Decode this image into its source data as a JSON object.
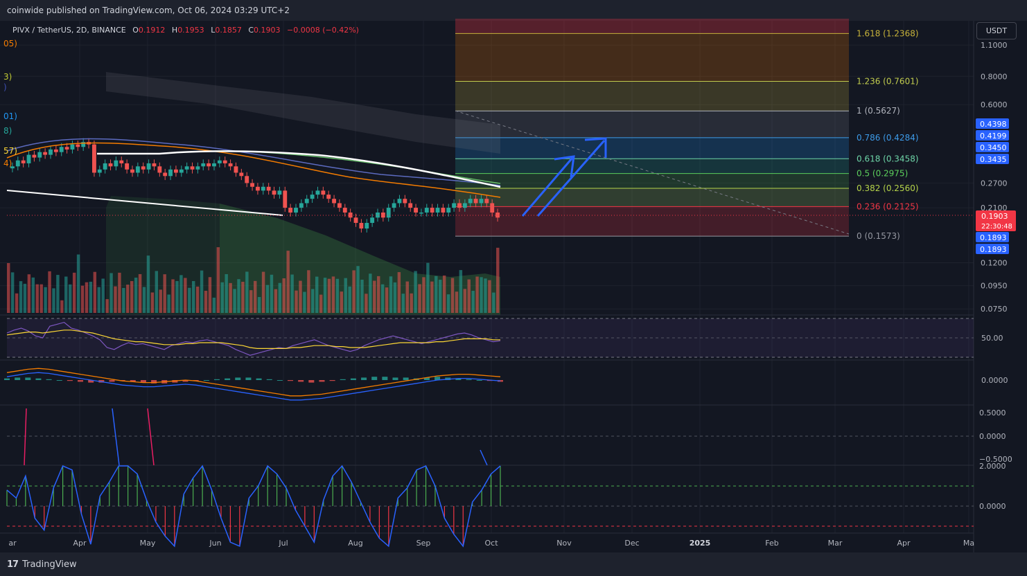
{
  "header": {
    "publish_text": "coinwide published on TradingView.com, Oct 06, 2024 03:29 UTC+2",
    "symbol": "PIVX / TetherUS, 2D, BINANCE",
    "open_label": "O",
    "open": "0.1912",
    "high_label": "H",
    "high": "0.1953",
    "low_label": "L",
    "low": "0.1857",
    "close_label": "C",
    "close": "0.1903",
    "change": "−0.0008 (−0.42%)"
  },
  "left_edge_labels": [
    "05)",
    "3)",
    ")",
    "01)",
    "8)",
    "57)",
    "4)"
  ],
  "currency_button": "USDT",
  "footer": {
    "brand": "TradingView"
  },
  "colors": {
    "background": "#131722",
    "up": "#26a69a",
    "down": "#ef5350",
    "fib_1618": "#c7b33a",
    "fib_1236": "#c1cc4e",
    "fib_1": "#b2b5be",
    "fib_0786": "#3d9be9",
    "fib_0618": "#6ed5a8",
    "fib_05": "#5ccf5c",
    "fib_0382": "#b6d44a",
    "fib_0236": "#f23645",
    "fib_0": "#9598a1",
    "arrow": "#2962ff",
    "label_blue": "#2962ff",
    "label_red": "#f23645"
  },
  "chart_data": [
    {
      "type": "candlestick",
      "title": "PIVX / TetherUS, 2D, BINANCE",
      "x_ticks": [
        "Apr",
        "May",
        "Jun",
        "Jul",
        "Aug",
        "Sep",
        "Oct",
        "Nov",
        "Dec",
        "2025",
        "Feb",
        "Mar",
        "Apr",
        "Ma"
      ],
      "y_scale": "log",
      "y_ticks": [
        "1.1000",
        "0.8000",
        "0.6000",
        "0.2700",
        "0.2100",
        "0.1200",
        "0.0950",
        "0.0750"
      ],
      "last_price": "0.1903",
      "countdown": "22:30:48",
      "price_labels": [
        "0.4398",
        "0.4199",
        "0.3450",
        "0.3435",
        "0.1893",
        "0.1893"
      ],
      "close_series": [
        0.32,
        0.34,
        0.33,
        0.36,
        0.35,
        0.37,
        0.36,
        0.38,
        0.37,
        0.39,
        0.38,
        0.4,
        0.39,
        0.41,
        0.4,
        0.3,
        0.31,
        0.33,
        0.32,
        0.34,
        0.33,
        0.31,
        0.3,
        0.32,
        0.31,
        0.33,
        0.32,
        0.3,
        0.29,
        0.31,
        0.3,
        0.31,
        0.32,
        0.31,
        0.32,
        0.33,
        0.32,
        0.33,
        0.34,
        0.33,
        0.32,
        0.3,
        0.29,
        0.27,
        0.26,
        0.25,
        0.26,
        0.25,
        0.24,
        0.25,
        0.21,
        0.2,
        0.21,
        0.22,
        0.23,
        0.24,
        0.25,
        0.24,
        0.23,
        0.22,
        0.21,
        0.2,
        0.19,
        0.18,
        0.17,
        0.18,
        0.19,
        0.2,
        0.19,
        0.21,
        0.22,
        0.23,
        0.22,
        0.21,
        0.2,
        0.2,
        0.21,
        0.2,
        0.21,
        0.2,
        0.21,
        0.22,
        0.21,
        0.22,
        0.23,
        0.22,
        0.23,
        0.22,
        0.2,
        0.19
      ],
      "fibonacci": [
        {
          "level": "1.618",
          "price": "1.2368"
        },
        {
          "level": "1.236",
          "price": "0.7601"
        },
        {
          "level": "1",
          "price": "0.5627"
        },
        {
          "level": "0.786",
          "price": "0.4284"
        },
        {
          "level": "0.618",
          "price": "0.3458"
        },
        {
          "level": "0.5",
          "price": "0.2975"
        },
        {
          "level": "0.382",
          "price": "0.2560"
        },
        {
          "level": "0.236",
          "price": "0.2125"
        },
        {
          "level": "0",
          "price": "0.1573"
        }
      ]
    },
    {
      "type": "line",
      "indicator": "rsi",
      "y_ticks": [
        "50.00"
      ],
      "rsi": [
        55,
        58,
        60,
        57,
        52,
        50,
        62,
        64,
        66,
        60,
        58,
        55,
        52,
        48,
        40,
        38,
        42,
        45,
        43,
        44,
        42,
        40,
        38,
        42,
        44,
        46,
        45,
        47,
        48,
        46,
        44,
        42,
        38,
        35,
        32,
        34,
        36,
        38,
        40,
        39,
        42,
        44,
        46,
        48,
        45,
        42,
        40,
        38,
        36,
        38,
        42,
        45,
        48,
        50,
        52,
        50,
        48,
        46,
        44,
        46,
        48,
        50,
        52,
        54,
        55,
        53,
        50,
        48,
        46,
        47
      ],
      "signal": [
        53,
        54,
        55,
        56,
        56,
        55,
        56,
        57,
        58,
        58,
        57,
        56,
        55,
        53,
        51,
        49,
        48,
        47,
        46,
        46,
        45,
        44,
        43,
        43,
        43,
        44,
        44,
        45,
        45,
        45,
        45,
        44,
        43,
        42,
        40,
        39,
        39,
        39,
        39,
        39,
        40,
        40,
        41,
        42,
        42,
        42,
        41,
        41,
        40,
        40,
        40,
        41,
        42,
        43,
        44,
        45,
        45,
        45,
        45,
        45,
        46,
        46,
        47,
        48,
        49,
        49,
        49,
        49,
        48,
        48
      ]
    },
    {
      "type": "bar",
      "indicator": "macd",
      "y_ticks": [
        "0.0000"
      ],
      "macd": [
        0.004,
        0.006,
        0.008,
        0.009,
        0.008,
        0.006,
        0.004,
        0.002,
        0.0,
        -0.002,
        -0.004,
        -0.006,
        -0.007,
        -0.008,
        -0.008,
        -0.007,
        -0.006,
        -0.005,
        -0.006,
        -0.008,
        -0.01,
        -0.012,
        -0.014,
        -0.016,
        -0.018,
        -0.02,
        -0.022,
        -0.024,
        -0.024,
        -0.023,
        -0.022,
        -0.02,
        -0.018,
        -0.016,
        -0.014,
        -0.012,
        -0.01,
        -0.008,
        -0.006,
        -0.004,
        -0.002,
        0.0,
        0.001,
        0.002,
        0.002,
        0.001,
        0.0,
        -0.001
      ],
      "histogram": [
        0.002,
        0.003,
        0.003,
        0.002,
        0.001,
        0.0,
        -0.001,
        -0.002,
        -0.003,
        -0.003,
        -0.002,
        -0.001,
        -0.002,
        -0.003,
        -0.004,
        -0.004,
        -0.003,
        -0.002,
        -0.001,
        0.0,
        0.001,
        0.002,
        0.003,
        0.003,
        0.002,
        0.001,
        0.0,
        -0.001,
        -0.002,
        -0.003,
        -0.002,
        -0.001,
        0.001,
        0.002,
        0.003,
        0.004,
        0.004,
        0.003,
        0.003,
        0.002,
        0.003,
        0.004,
        0.003,
        0.002,
        0.001,
        0.0,
        -0.001,
        -0.002
      ]
    },
    {
      "type": "line",
      "indicator": "oscillator",
      "y_ticks": [
        "0.5000",
        "0.0000",
        "−0.5000"
      ]
    },
    {
      "type": "bar",
      "indicator": "oscillator-histogram",
      "y_ticks": [
        "2.0000",
        "0.0000"
      ],
      "values": [
        0.8,
        0.4,
        1.5,
        -0.6,
        -1.2,
        0.9,
        2.0,
        1.8,
        -0.4,
        -1.9,
        0.5,
        1.2,
        2.0,
        2.0,
        1.6,
        0.3,
        -0.8,
        -1.5,
        -2.0,
        0.6,
        1.4,
        2.0,
        0.8,
        -0.6,
        -1.8,
        -2.0,
        0.4,
        1.0,
        2.0,
        1.6,
        0.9,
        -0.2,
        -1.0,
        -1.8,
        0.3,
        1.5,
        2.0,
        1.2,
        0.2,
        -0.8,
        -1.6,
        -2.0,
        0.4,
        0.9,
        1.8,
        2.0,
        1.0,
        -0.6,
        -1.4,
        -2.0,
        0.2,
        0.8,
        1.6,
        2.0
      ]
    }
  ]
}
